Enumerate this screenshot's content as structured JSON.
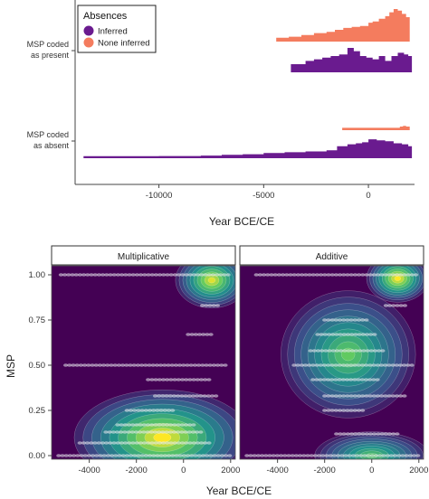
{
  "chart_data": [
    {
      "type": "area",
      "xlabel": "Year BCE/CE",
      "x_ticks": [
        -10000,
        -5000,
        0
      ],
      "xlim": [
        -14000,
        2200
      ],
      "row_labels": [
        {
          "lines": [
            "MSP coded",
            "as present"
          ]
        },
        {
          "lines": [
            "MSP coded",
            "as absent"
          ]
        }
      ],
      "legend": {
        "title": "Absences",
        "position": "top-left",
        "entries": [
          {
            "label": "Inferred",
            "color": "#6a1b8f"
          },
          {
            "label": "None inferred",
            "color": "#f47c5e"
          }
        ]
      },
      "series": [
        {
          "name": "None inferred",
          "row": "MSP coded as present",
          "color": "#f47c5e",
          "x": [
            -4400,
            -3800,
            -3200,
            -2600,
            -2000,
            -1600,
            -1200,
            -800,
            -400,
            0,
            200,
            500,
            800,
            1000,
            1200,
            1400,
            1600,
            1800
          ],
          "y": [
            0.12,
            0.15,
            0.2,
            0.26,
            0.3,
            0.36,
            0.42,
            0.45,
            0.48,
            0.58,
            0.62,
            0.7,
            0.78,
            0.9,
            1.0,
            0.95,
            0.85,
            0.75
          ]
        },
        {
          "name": "Inferred",
          "row": "MSP coded as present",
          "color": "#6a1b8f",
          "x": [
            -3700,
            -3000,
            -2600,
            -2200,
            -1800,
            -1400,
            -1000,
            -700,
            -400,
            -100,
            200,
            500,
            800,
            1100,
            1400,
            1700,
            1900
          ],
          "y": [
            0.25,
            0.35,
            0.4,
            0.45,
            0.5,
            0.55,
            0.75,
            0.65,
            0.5,
            0.45,
            0.4,
            0.5,
            0.35,
            0.5,
            0.6,
            0.55,
            0.5
          ]
        },
        {
          "name": "None inferred",
          "row": "MSP coded as absent",
          "color": "#f47c5e",
          "x": [
            -1250,
            -1000,
            1500,
            1650,
            1800
          ],
          "y": [
            0.12,
            0.12,
            0.18,
            0.22,
            0.18
          ]
        },
        {
          "name": "Inferred",
          "row": "MSP coded as absent",
          "color": "#6a1b8f",
          "x": [
            -13600,
            -12000,
            -10000,
            -8000,
            -7000,
            -6000,
            -5000,
            -4000,
            -3000,
            -2000,
            -1500,
            -1000,
            -600,
            -300,
            0,
            400,
            800,
            1200,
            1600,
            1900
          ],
          "y": [
            0.1,
            0.1,
            0.11,
            0.13,
            0.17,
            0.2,
            0.26,
            0.3,
            0.34,
            0.4,
            0.6,
            0.7,
            0.75,
            0.8,
            0.95,
            0.9,
            0.85,
            0.75,
            0.7,
            0.6
          ]
        }
      ]
    },
    {
      "type": "heatmap",
      "xlabel": "Year BCE/CE",
      "ylabel": "MSP",
      "x_ticks": [
        -4000,
        -2000,
        0,
        2000
      ],
      "y_ticks": [
        "0.00",
        "0.25",
        "0.50",
        "0.75",
        "1.00"
      ],
      "xlim": [
        -5600,
        2200
      ],
      "ylim": [
        -0.02,
        1.05
      ],
      "panels": [
        {
          "title": "Multiplicative",
          "density_peaks": [
            {
              "x": -900,
              "y": 0.1,
              "weight": 1.0,
              "sx": 1700,
              "sy": 0.12
            },
            {
              "x": 1200,
              "y": 0.97,
              "weight": 0.95,
              "sx": 700,
              "sy": 0.07
            }
          ],
          "observation_rows": [
            {
              "y": 0.0,
              "x_from": -5300,
              "x_to": 2000
            },
            {
              "y": 0.07,
              "x_from": -4400,
              "x_to": 1200
            },
            {
              "y": 0.13,
              "x_from": -3300,
              "x_to": 800
            },
            {
              "y": 0.17,
              "x_from": -2800,
              "x_to": 500
            },
            {
              "y": 0.25,
              "x_from": -2400,
              "x_to": -400
            },
            {
              "y": 0.33,
              "x_from": -1200,
              "x_to": 1500
            },
            {
              "y": 0.42,
              "x_from": -1500,
              "x_to": 1200
            },
            {
              "y": 0.5,
              "x_from": -5000,
              "x_to": 1900
            },
            {
              "y": 0.67,
              "x_from": 200,
              "x_to": 1200
            },
            {
              "y": 0.83,
              "x_from": 800,
              "x_to": 1600
            },
            {
              "y": 1.0,
              "x_from": -5200,
              "x_to": 2000
            }
          ]
        },
        {
          "title": "Additive",
          "density_peaks": [
            {
              "x": -1000,
              "y": 0.56,
              "weight": 0.75,
              "sx": 1300,
              "sy": 0.16
            },
            {
              "x": 0,
              "y": 0.0,
              "weight": 0.7,
              "sx": 1100,
              "sy": 0.06
            },
            {
              "x": 1100,
              "y": 0.98,
              "weight": 1.0,
              "sx": 600,
              "sy": 0.06
            }
          ],
          "observation_rows": [
            {
              "y": 0.0,
              "x_from": -5300,
              "x_to": 2000
            },
            {
              "y": 0.12,
              "x_from": -1500,
              "x_to": 1200
            },
            {
              "y": 0.25,
              "x_from": -2000,
              "x_to": -300
            },
            {
              "y": 0.33,
              "x_from": -2000,
              "x_to": 1500
            },
            {
              "y": 0.42,
              "x_from": -2500,
              "x_to": 400
            },
            {
              "y": 0.5,
              "x_from": -3300,
              "x_to": 1800
            },
            {
              "y": 0.58,
              "x_from": -2600,
              "x_to": 500
            },
            {
              "y": 0.67,
              "x_from": -2300,
              "x_to": 200
            },
            {
              "y": 0.75,
              "x_from": -2000,
              "x_to": -200
            },
            {
              "y": 0.83,
              "x_from": 600,
              "x_to": 1500
            },
            {
              "y": 1.0,
              "x_from": -4900,
              "x_to": 2000
            }
          ]
        }
      ]
    }
  ]
}
